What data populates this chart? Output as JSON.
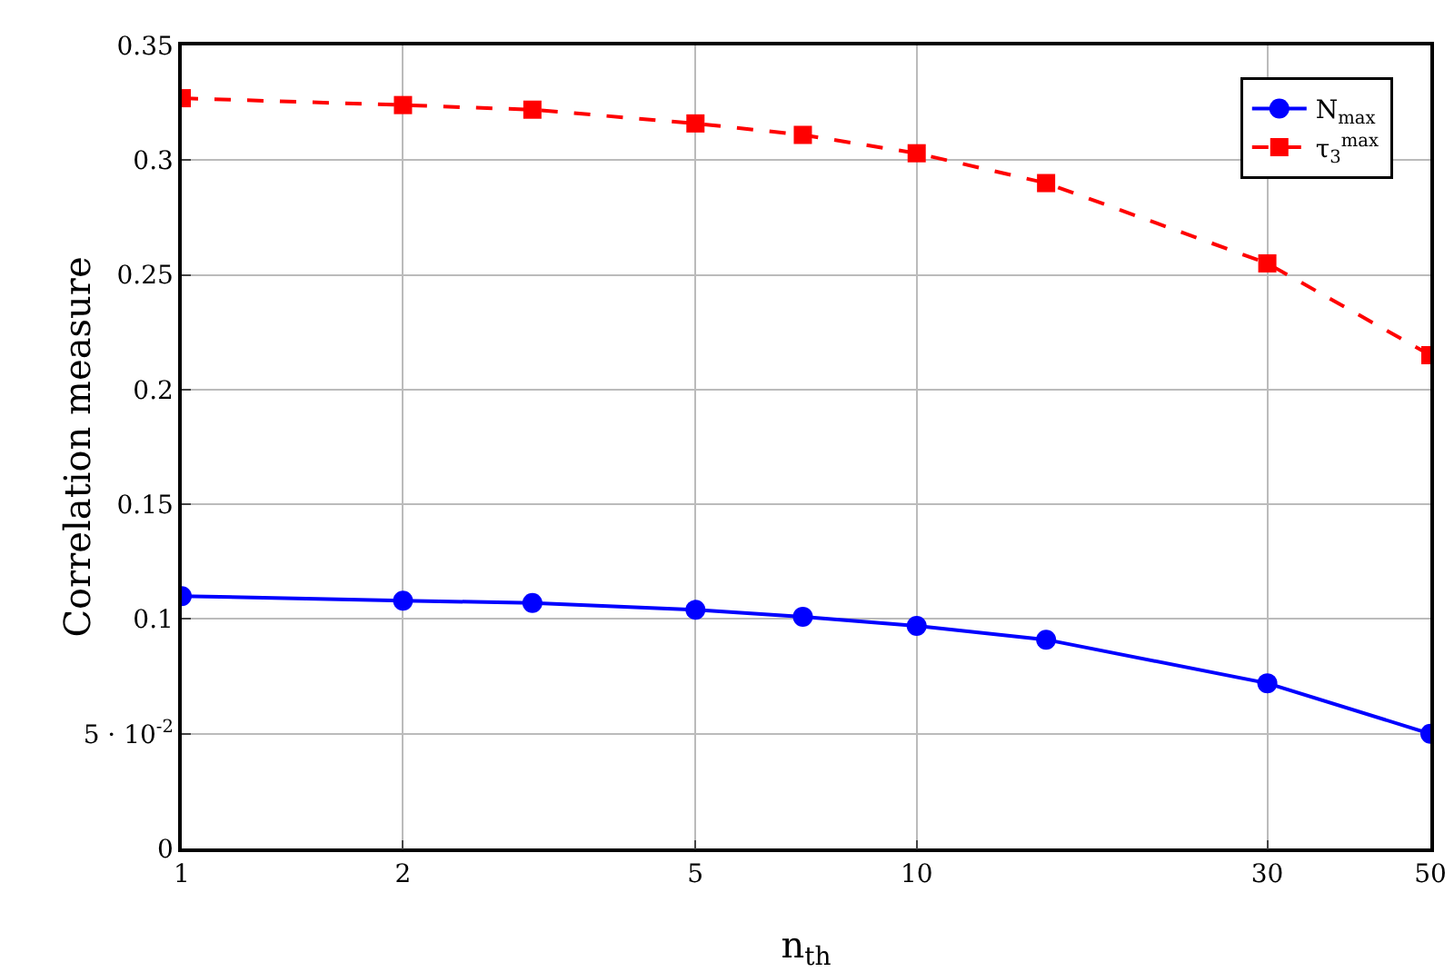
{
  "chart_data": {
    "type": "line",
    "xlabel": "n$_{th}$",
    "ylabel": "Correlation measure",
    "log": "x",
    "x": [
      1,
      2,
      3,
      5,
      7,
      10,
      15,
      30,
      50
    ],
    "series": [
      {
        "name": "N$_{max}$",
        "color": "#0000ff",
        "marker": "circle",
        "line_style": "solid",
        "values": [
          0.11,
          0.108,
          0.107,
          0.104,
          0.101,
          0.097,
          0.091,
          0.072,
          0.05
        ]
      },
      {
        "name": "τ$_{3}$$^{max}$",
        "color": "#ff0000",
        "marker": "square",
        "line_style": "dashed",
        "values": [
          0.327,
          0.324,
          0.322,
          0.316,
          0.311,
          0.303,
          0.29,
          0.255,
          0.215
        ]
      }
    ],
    "xlim": [
      1,
      50
    ],
    "xticks": [
      1,
      2,
      5,
      10,
      30,
      50
    ],
    "ylim": [
      0,
      0.35
    ],
    "yticks": [
      0,
      {
        "value": 0.05,
        "label": "5 · 10$^{-2}$"
      },
      0.1,
      0.15,
      0.2,
      0.25,
      0.3,
      0.35
    ],
    "grid": true,
    "legend": "top right"
  }
}
